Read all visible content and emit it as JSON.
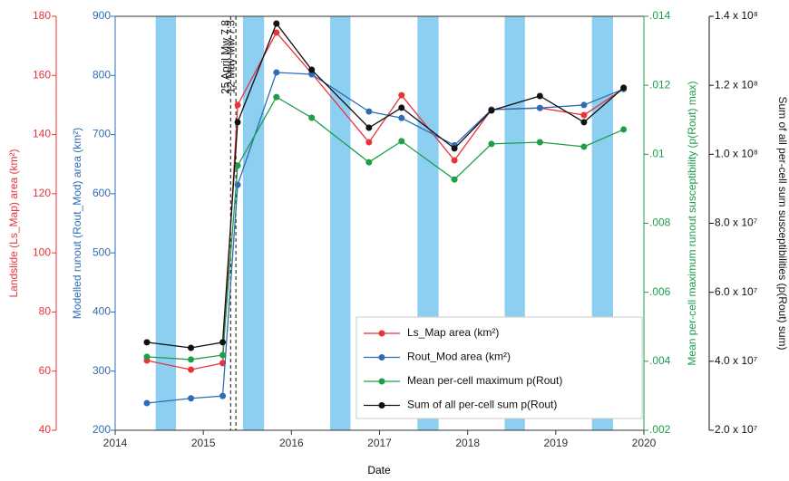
{
  "chart_data": {
    "type": "line",
    "xlabel": "Date",
    "ylabel": "Landslide (Ls_Map) area (km²)",
    "y2label": "Modelled runout (Rout_Mod) area (km²)",
    "y3label": "Mean per-cell maximum runout susceptibility (p(Rout) max)",
    "y4label": "Sum of all per-cell sum susceptibilities (p(Rout) sum)",
    "xlim": [
      2014,
      2020
    ],
    "xticks": [
      2014,
      2015,
      2016,
      2017,
      2018,
      2019,
      2020
    ],
    "ylim": [
      40,
      180
    ],
    "yticks": [
      40,
      60,
      80,
      100,
      120,
      140,
      160,
      180
    ],
    "y2lim": [
      200,
      900
    ],
    "y2ticks": [
      200,
      300,
      400,
      500,
      600,
      700,
      800,
      900
    ],
    "y3lim": [
      0.002,
      0.014
    ],
    "y3ticks": [
      {
        "value": 0.002,
        "label": ".002"
      },
      {
        "value": 0.004,
        "label": ".004"
      },
      {
        "value": 0.006,
        "label": ".006"
      },
      {
        "value": 0.008,
        "label": ".008"
      },
      {
        "value": 0.01,
        "label": ".01"
      },
      {
        "value": 0.012,
        "label": ".012"
      },
      {
        "value": 0.014,
        "label": ".014"
      }
    ],
    "y4lim": [
      20000000,
      140000000
    ],
    "y4ticks": [
      {
        "value": 20000000,
        "label": "2.0 x 10⁷"
      },
      {
        "value": 40000000,
        "label": "4.0 x 10⁷"
      },
      {
        "value": 60000000,
        "label": "6.0 x 10⁷"
      },
      {
        "value": 80000000,
        "label": "8.0 x 10⁷"
      },
      {
        "value": 100000000,
        "label": "1.0 x 10⁸"
      },
      {
        "value": 120000000,
        "label": "1.2 x 10⁸"
      },
      {
        "value": 140000000,
        "label": "1.4 x 10⁸"
      }
    ],
    "x": [
      2014.36,
      2014.86,
      2015.22,
      2015.39,
      2015.83,
      2016.23,
      2016.88,
      2017.25,
      2017.85,
      2018.27,
      2018.82,
      2019.32,
      2019.77
    ],
    "series": [
      {
        "name": "Ls_Map area (km²)",
        "color": "#e8333a",
        "axis": "y",
        "values": [
          63.6,
          60.5,
          62.7,
          150,
          174.5,
          160.7,
          137.4,
          153.3,
          131.3,
          148.5,
          149,
          146.6,
          155.5
        ]
      },
      {
        "name": "Rout_Mod area (km²)",
        "color": "#2e6db5",
        "axis": "y2",
        "values": [
          246,
          254,
          258,
          615,
          805,
          802,
          739,
          728,
          682,
          742,
          745,
          750,
          777
        ]
      },
      {
        "name": "Mean per-cell maximum p(Rout)",
        "color": "#1e9e4a",
        "axis": "y3",
        "values": [
          0.00413,
          0.00405,
          0.00418,
          0.00967,
          0.01166,
          0.01106,
          0.00977,
          0.01038,
          0.00927,
          0.0103,
          0.01035,
          0.01022,
          0.01072
        ]
      },
      {
        "name": "Sum of all per-cell sum p(Rout)",
        "color": "#111111",
        "axis": "y4",
        "values": [
          45500000,
          43900000,
          45500000,
          109300000,
          137900000,
          124500000,
          107700000,
          113500000,
          101700000,
          112700000,
          116900000,
          109300000,
          119300000
        ]
      }
    ],
    "shaded_periods": [
      [
        2014.46,
        2014.69
      ],
      [
        2015.45,
        2015.69
      ],
      [
        2016.44,
        2016.67
      ],
      [
        2017.43,
        2017.67
      ],
      [
        2018.42,
        2018.65
      ],
      [
        2019.41,
        2019.65
      ]
    ],
    "shade_color": "#8dcff0",
    "annotations": [
      {
        "x": 2015.31,
        "text": "25 April Mw 7.8"
      },
      {
        "x": 2015.37,
        "text": "12 May Mw 7.3"
      }
    ]
  }
}
